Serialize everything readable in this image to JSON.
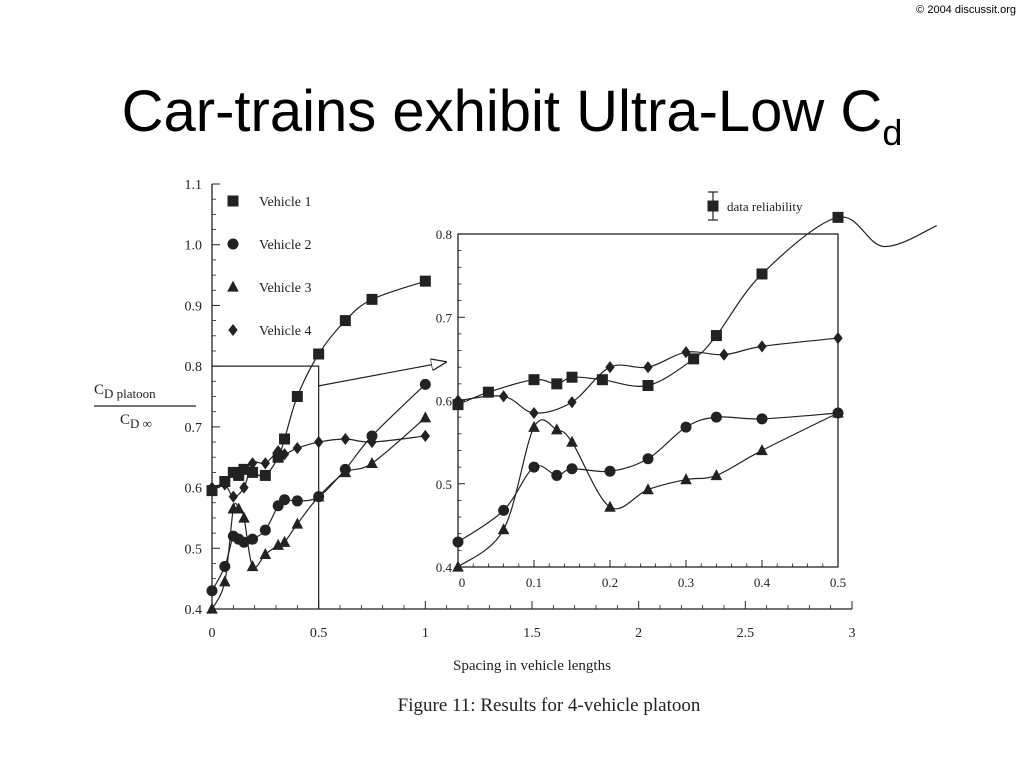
{
  "header": {
    "copyright": "© 2004  discussit.org",
    "title_main": "Car-trains exhibit Ultra-Low C",
    "title_sub": "d"
  },
  "chart_data": [
    {
      "type": "scatter",
      "xlabel": "Spacing in vehicle lengths",
      "ylabel_numerator": "C",
      "ylabel_numerator_sub": "D platoon",
      "ylabel_denominator": "C",
      "ylabel_denominator_sub": "D ∞",
      "caption": "Figure 11: Results for 4-vehicle platoon",
      "xlim": [
        0,
        3
      ],
      "ylim": [
        0.4,
        1.1
      ],
      "xticks": [
        "0",
        "0.5",
        "1",
        "1.5",
        "2",
        "2.5",
        "3"
      ],
      "yticks": [
        "0.4",
        "0.5",
        "0.6",
        "0.7",
        "0.8",
        "0.9",
        "1.0",
        "1.1"
      ],
      "legend_position": "top-left",
      "zoom_box": {
        "x": [
          0,
          0.5
        ],
        "y": [
          0.4,
          0.8
        ]
      },
      "series": [
        {
          "name": "Vehicle 1",
          "marker": "square",
          "points": [
            [
              0,
              0.595
            ],
            [
              0.06,
              0.61
            ],
            [
              0.1,
              0.625
            ],
            [
              0.125,
              0.62
            ],
            [
              0.15,
              0.63
            ],
            [
              0.19,
              0.625
            ],
            [
              0.25,
              0.62
            ],
            [
              0.31,
              0.65
            ],
            [
              0.34,
              0.68
            ],
            [
              0.4,
              0.75
            ],
            [
              0.5,
              0.82
            ],
            [
              0.625,
              0.875
            ],
            [
              0.75,
              0.91
            ],
            [
              1.0,
              0.94
            ]
          ]
        },
        {
          "name": "Vehicle 2",
          "marker": "circle",
          "points": [
            [
              0,
              0.43
            ],
            [
              0.06,
              0.47
            ],
            [
              0.1,
              0.52
            ],
            [
              0.125,
              0.515
            ],
            [
              0.15,
              0.51
            ],
            [
              0.19,
              0.515
            ],
            [
              0.25,
              0.53
            ],
            [
              0.31,
              0.57
            ],
            [
              0.34,
              0.58
            ],
            [
              0.4,
              0.578
            ],
            [
              0.5,
              0.585
            ],
            [
              0.625,
              0.63
            ],
            [
              0.75,
              0.685
            ],
            [
              1.0,
              0.77
            ]
          ]
        },
        {
          "name": "Vehicle 3",
          "marker": "triangle",
          "points": [
            [
              0,
              0.4
            ],
            [
              0.06,
              0.445
            ],
            [
              0.1,
              0.565
            ],
            [
              0.125,
              0.565
            ],
            [
              0.15,
              0.55
            ],
            [
              0.19,
              0.47
            ],
            [
              0.25,
              0.49
            ],
            [
              0.31,
              0.505
            ],
            [
              0.34,
              0.51
            ],
            [
              0.4,
              0.54
            ],
            [
              0.5,
              0.585
            ],
            [
              0.625,
              0.625
            ],
            [
              0.75,
              0.64
            ],
            [
              1.0,
              0.715
            ]
          ]
        },
        {
          "name": "Vehicle 4",
          "marker": "diamond",
          "points": [
            [
              0,
              0.6
            ],
            [
              0.06,
              0.605
            ],
            [
              0.1,
              0.585
            ],
            [
              0.15,
              0.6
            ],
            [
              0.19,
              0.64
            ],
            [
              0.25,
              0.64
            ],
            [
              0.31,
              0.66
            ],
            [
              0.34,
              0.655
            ],
            [
              0.4,
              0.665
            ],
            [
              0.5,
              0.675
            ],
            [
              0.625,
              0.68
            ],
            [
              0.75,
              0.675
            ],
            [
              1.0,
              0.685
            ]
          ]
        }
      ]
    },
    {
      "type": "scatter",
      "legend_label": "data reliability",
      "xlim": [
        0,
        0.5
      ],
      "ylim": [
        0.4,
        0.8
      ],
      "xticks": [
        "0",
        "0.1",
        "0.2",
        "0.3",
        "0.4",
        "0.5"
      ],
      "yticks": [
        "0.4",
        "0.5",
        "0.6",
        "0.7",
        "0.8"
      ],
      "legend_position": "top-right",
      "series": [
        {
          "name": "Vehicle 1",
          "marker": "square",
          "points": [
            [
              0,
              0.595
            ],
            [
              0.04,
              0.61
            ],
            [
              0.1,
              0.625
            ],
            [
              0.13,
              0.62
            ],
            [
              0.15,
              0.628
            ],
            [
              0.19,
              0.625
            ],
            [
              0.25,
              0.618
            ],
            [
              0.31,
              0.65
            ],
            [
              0.34,
              0.678
            ],
            [
              0.4,
              0.752
            ],
            [
              0.5,
              0.82
            ]
          ]
        },
        {
          "name": "Vehicle 2",
          "marker": "circle",
          "points": [
            [
              0,
              0.43
            ],
            [
              0.06,
              0.468
            ],
            [
              0.1,
              0.52
            ],
            [
              0.13,
              0.51
            ],
            [
              0.15,
              0.518
            ],
            [
              0.2,
              0.515
            ],
            [
              0.25,
              0.53
            ],
            [
              0.3,
              0.568
            ],
            [
              0.34,
              0.58
            ],
            [
              0.4,
              0.578
            ],
            [
              0.5,
              0.585
            ]
          ]
        },
        {
          "name": "Vehicle 3",
          "marker": "triangle",
          "points": [
            [
              0,
              0.4
            ],
            [
              0.06,
              0.445
            ],
            [
              0.1,
              0.568
            ],
            [
              0.13,
              0.565
            ],
            [
              0.15,
              0.55
            ],
            [
              0.2,
              0.472
            ],
            [
              0.25,
              0.493
            ],
            [
              0.3,
              0.505
            ],
            [
              0.34,
              0.51
            ],
            [
              0.4,
              0.54
            ],
            [
              0.5,
              0.585
            ]
          ]
        },
        {
          "name": "Vehicle 4",
          "marker": "diamond",
          "points": [
            [
              0,
              0.6
            ],
            [
              0.06,
              0.605
            ],
            [
              0.1,
              0.585
            ],
            [
              0.15,
              0.598
            ],
            [
              0.2,
              0.64
            ],
            [
              0.25,
              0.64
            ],
            [
              0.3,
              0.658
            ],
            [
              0.35,
              0.655
            ],
            [
              0.4,
              0.665
            ],
            [
              0.5,
              0.675
            ]
          ]
        }
      ]
    }
  ]
}
